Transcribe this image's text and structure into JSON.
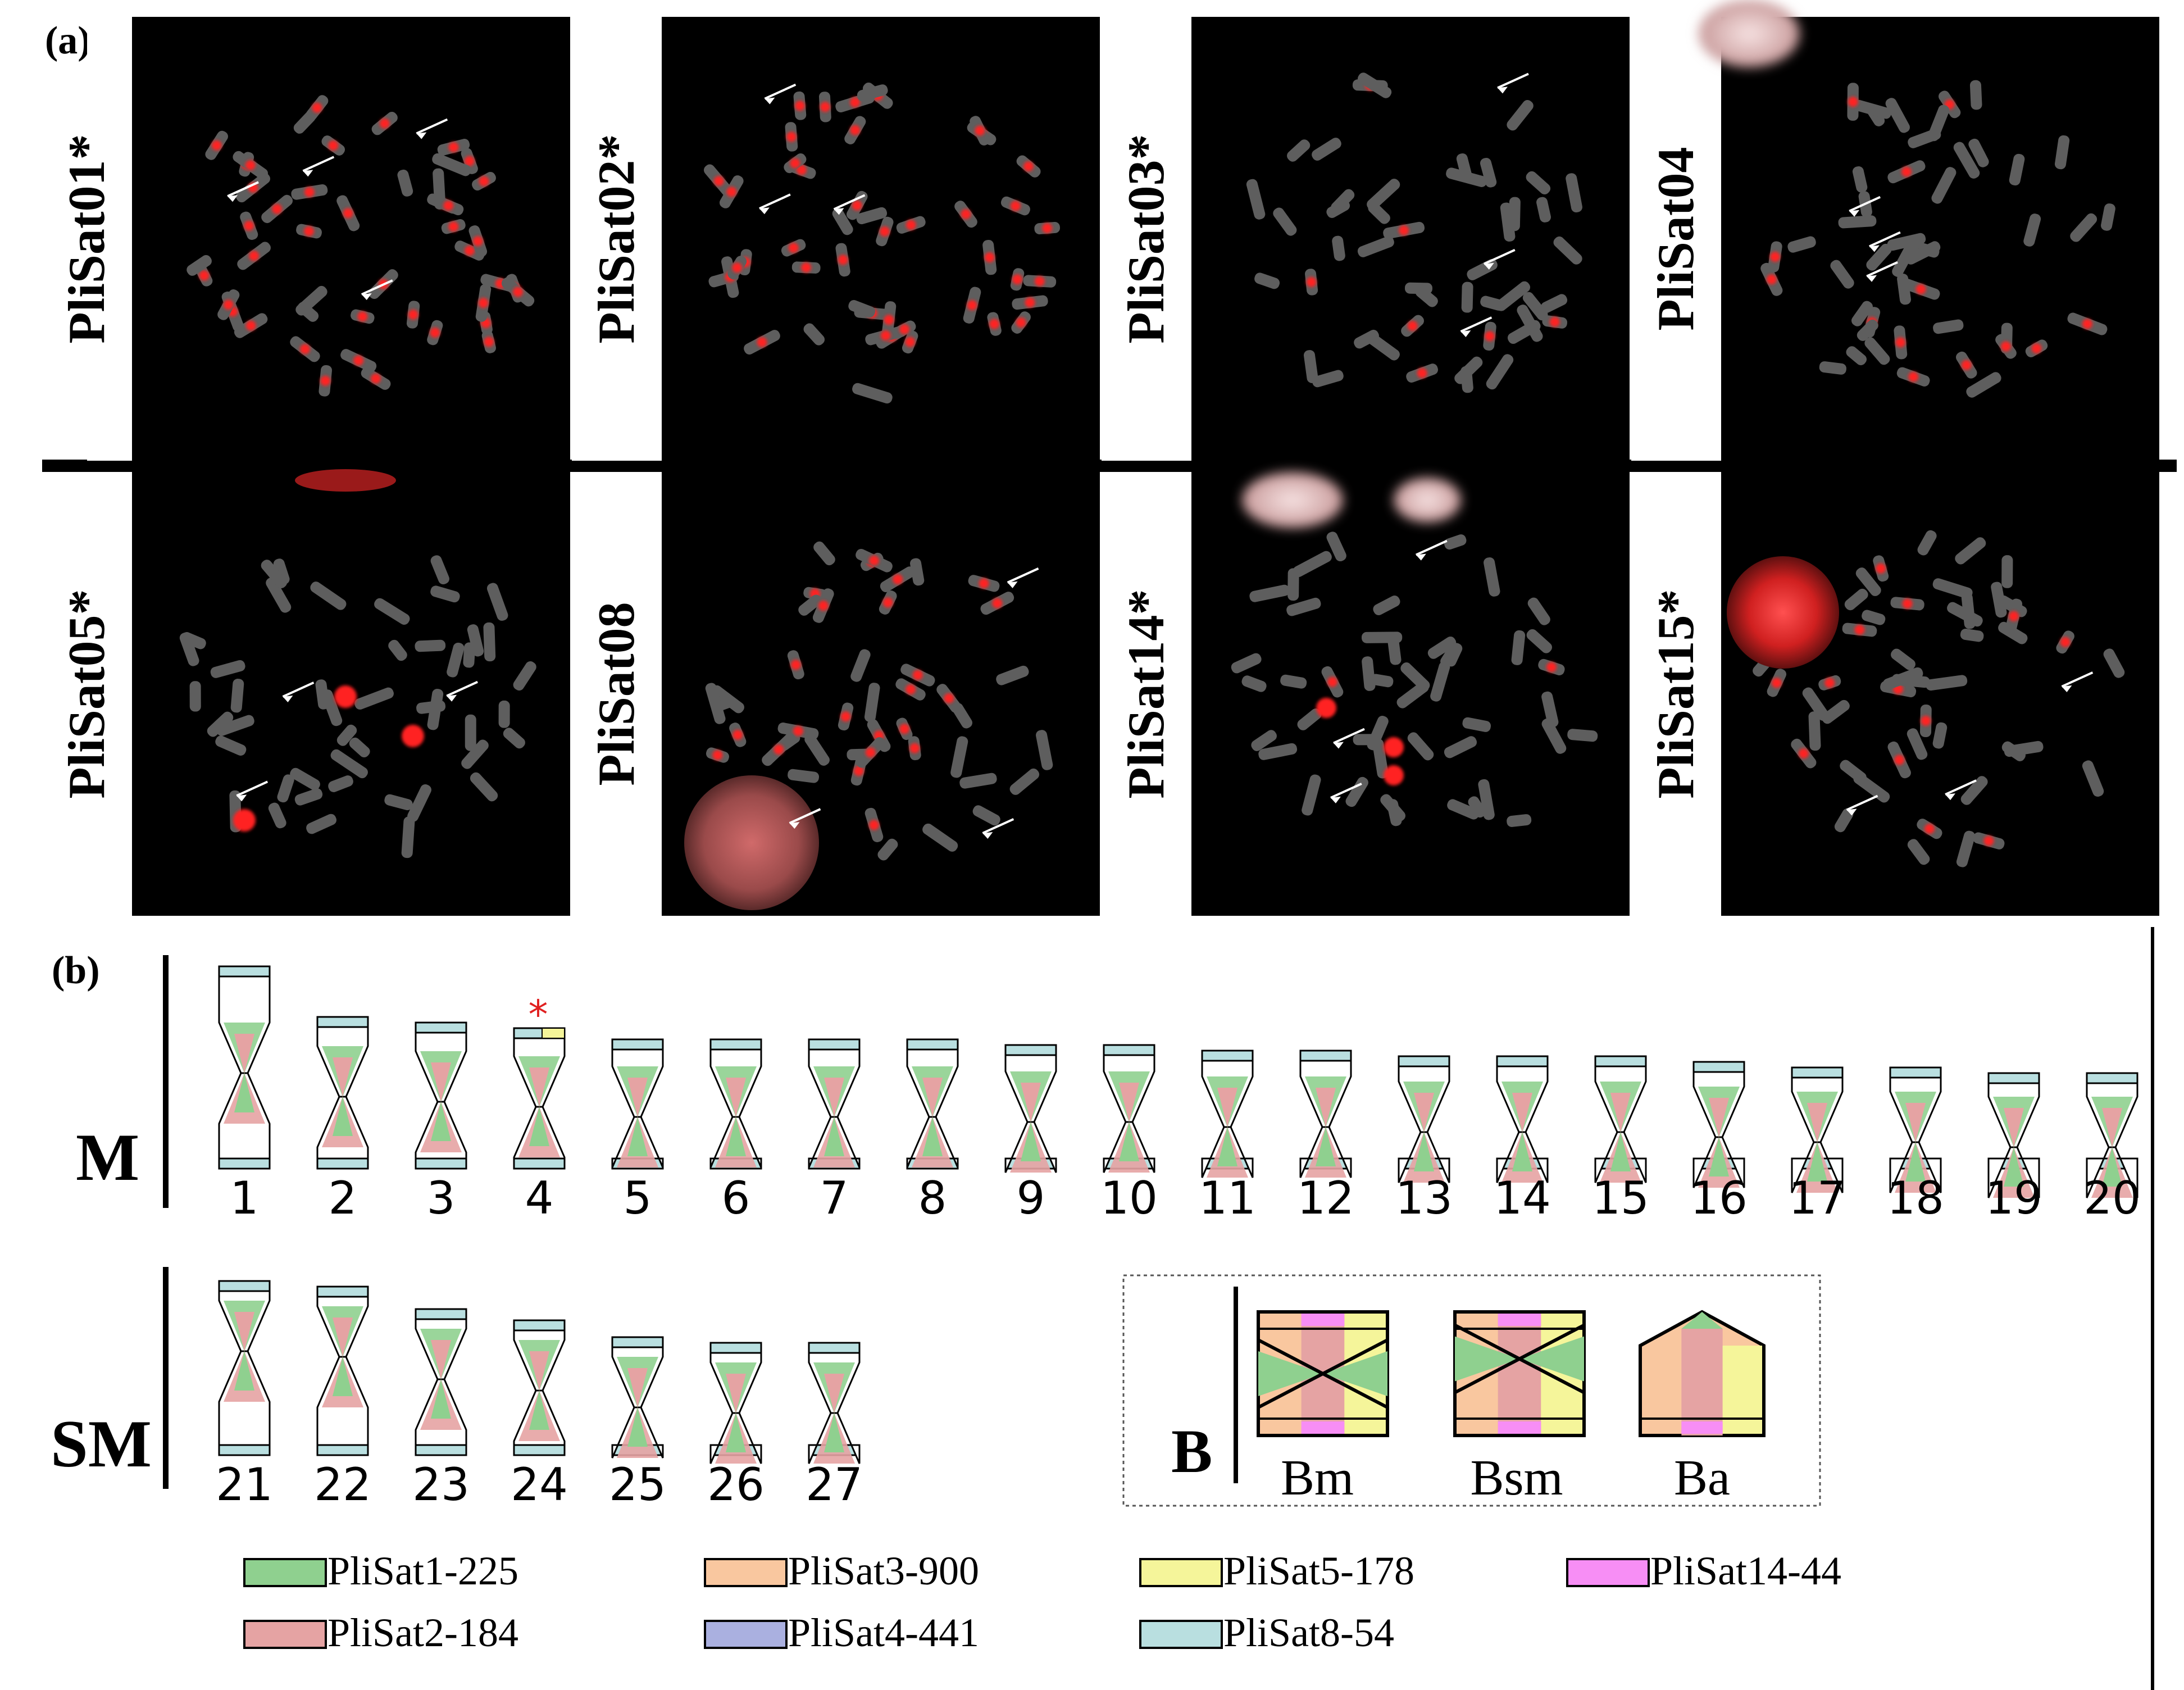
{
  "panel_a": {
    "label": "(a)",
    "panels": [
      {
        "label": "PliSat01*",
        "arrows": 4
      },
      {
        "label": "PliSat02*",
        "arrows": 3
      },
      {
        "label": "PliSat03*",
        "arrows": 3
      },
      {
        "label": "PliSat04",
        "arrows": 3
      },
      {
        "label": "PliSat05*",
        "arrows": 3
      },
      {
        "label": "PliSat08",
        "arrows": 3
      },
      {
        "label": "PliSat14*",
        "arrows": 3
      },
      {
        "label": "PliSat15*",
        "arrows": 3
      }
    ]
  },
  "panel_b": {
    "label": "(b)",
    "group_m_label": "M",
    "group_sm_label": "SM",
    "m_numbers": [
      "1",
      "2",
      "3",
      "4",
      "5",
      "6",
      "7",
      "8",
      "9",
      "10",
      "11",
      "12",
      "13",
      "14",
      "15",
      "16",
      "17",
      "18",
      "19",
      "20"
    ],
    "sm_numbers": [
      "21",
      "22",
      "23",
      "24",
      "25",
      "26",
      "27"
    ],
    "asterisk": "*",
    "b_box": {
      "label": "B",
      "items": [
        "Bm",
        "Bsm",
        "Ba"
      ]
    },
    "legend": [
      {
        "name": "PliSat1-225",
        "color": "#8fd08f"
      },
      {
        "name": "PliSat3-900",
        "color": "#f9c79f"
      },
      {
        "name": "PliSat5-178",
        "color": "#f5f59a"
      },
      {
        "name": "PliSat14-44",
        "color": "#f78ef5"
      },
      {
        "name": "PliSat2-184",
        "color": "#e5a3a3"
      },
      {
        "name": "PliSat4-441",
        "color": "#aab0e0"
      },
      {
        "name": "PliSat8-54",
        "color": "#b9dfe0"
      }
    ]
  },
  "colors": {
    "signal": "#ff2020",
    "chromosome": "#5e5e5e",
    "background": "#000000",
    "accent_asterisk": "#e02020"
  }
}
